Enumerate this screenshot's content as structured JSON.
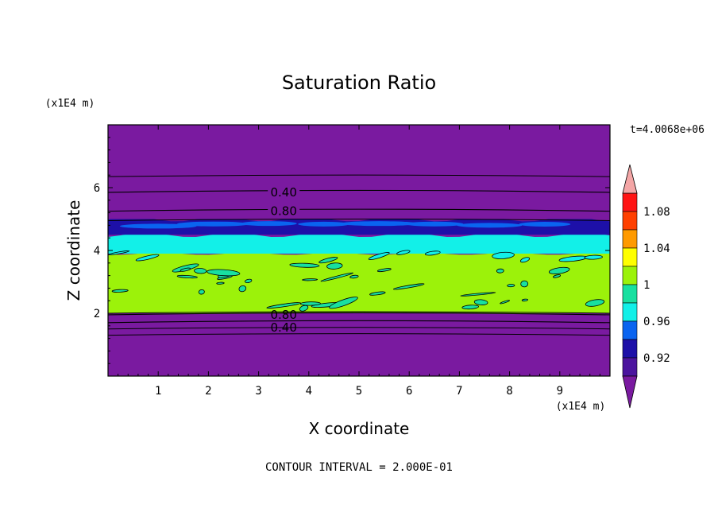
{
  "chart_data": {
    "type": "heatmap",
    "title": "Saturation Ratio",
    "xlabel": "X coordinate",
    "ylabel": "Z coordinate",
    "x_unit": "(x1E4 m)",
    "y_unit": "(x1E4 m)",
    "time_label": "t=4.0068e+06",
    "footer": "CONTOUR INTERVAL = 2.000E-01",
    "xlim": [
      0,
      10
    ],
    "ylim": [
      0,
      8
    ],
    "x_ticks": [
      "1",
      "2",
      "3",
      "4",
      "5",
      "6",
      "7",
      "8",
      "9"
    ],
    "y_ticks": [
      "2",
      "4",
      "6"
    ],
    "colorbar": {
      "labels": [
        "1.08",
        "1.04",
        "1",
        "0.96",
        "0.92"
      ],
      "levels": [
        {
          "min": null,
          "max": 0.9,
          "color": "#7a1aa0"
        },
        {
          "min": 0.9,
          "max": 0.92,
          "color": "#4b149e"
        },
        {
          "min": 0.92,
          "max": 0.94,
          "color": "#1d10a8"
        },
        {
          "min": 0.94,
          "max": 0.96,
          "color": "#0a64f0"
        },
        {
          "min": 0.96,
          "max": 0.98,
          "color": "#12f0e8"
        },
        {
          "min": 0.98,
          "max": 1.0,
          "color": "#18e0a0"
        },
        {
          "min": 1.0,
          "max": 1.02,
          "color": "#9cf20a"
        },
        {
          "min": 1.02,
          "max": 1.04,
          "color": "#ffff00"
        },
        {
          "min": 1.04,
          "max": 1.06,
          "color": "#ff9a00"
        },
        {
          "min": 1.06,
          "max": 1.08,
          "color": "#ff4000"
        },
        {
          "min": 1.08,
          "max": 1.1,
          "color": "#ff1414"
        },
        {
          "min": 1.1,
          "max": null,
          "color": "#f4a6a6"
        }
      ]
    },
    "bands": [
      {
        "z_min": 0,
        "z_max": 2.0,
        "value_range": "<0.90",
        "color": "#7a1aa0"
      },
      {
        "z_min": 2.0,
        "z_max": 3.9,
        "value_range": "0.98-1.02",
        "color": "#9cf20a"
      },
      {
        "z_min": 3.9,
        "z_max": 4.5,
        "value_range": "0.96-1.00",
        "color": "#12f0e8"
      },
      {
        "z_min": 4.5,
        "z_max": 5.0,
        "value_range": "0.92-0.96",
        "color": "#1d10a8"
      },
      {
        "z_min": 5.0,
        "z_max": 8.0,
        "value_range": "<0.90",
        "color": "#7a1aa0"
      }
    ],
    "contours": [
      {
        "value": 0.4,
        "z": 5.85,
        "label": "0.40"
      },
      {
        "value": 0.8,
        "z": 5.25,
        "label": "0.80"
      },
      {
        "value": 0.8,
        "z": 1.95,
        "label": "0.80"
      },
      {
        "value": 0.4,
        "z": 1.7,
        "label": "0.40"
      }
    ]
  }
}
